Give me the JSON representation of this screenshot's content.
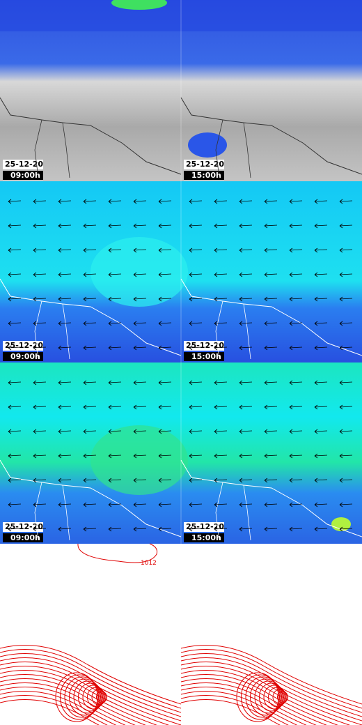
{
  "maps": [
    {
      "panels": [
        {
          "date": "25-12-20",
          "time": "09:00h"
        },
        {
          "date": "25-12-20",
          "time": "15:00h"
        }
      ]
    },
    {
      "panels": [
        {
          "date": "25-12-20",
          "time": "09:00h"
        },
        {
          "date": "25-12-20",
          "time": "15:00h"
        }
      ]
    },
    {
      "panels": [
        {
          "date": "25-12-20",
          "time": "09:00h"
        },
        {
          "date": "25-12-20",
          "time": "15:00h"
        }
      ]
    }
  ],
  "pressure_map": {
    "contour_label": "1012"
  }
}
